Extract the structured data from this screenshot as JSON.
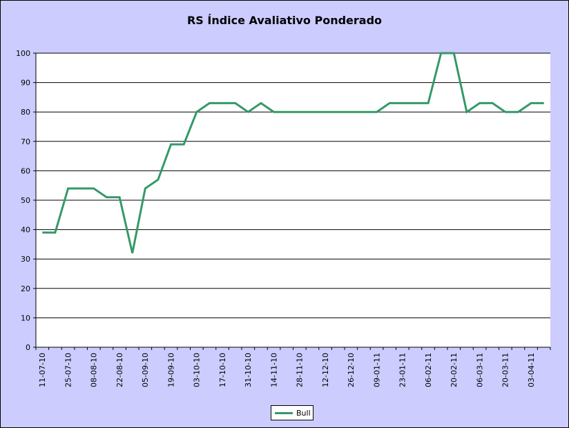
{
  "chart_data": {
    "type": "line",
    "title": "RS Índice Avaliativo Ponderado",
    "xlabel": "",
    "ylabel": "",
    "ylim": [
      0,
      100
    ],
    "yticks": [
      0,
      10,
      20,
      30,
      40,
      50,
      60,
      70,
      80,
      90,
      100
    ],
    "xtick_labels": [
      "11-07-10",
      "25-07-10",
      "08-08-10",
      "22-08-10",
      "05-09-10",
      "19-09-10",
      "03-10-10",
      "17-10-10",
      "31-10-10",
      "14-11-10",
      "28-11-10",
      "12-12-10",
      "26-12-10",
      "09-01-11",
      "23-01-11",
      "06-02-11",
      "20-02-11",
      "06-03-11",
      "20-03-11",
      "03-04-11"
    ],
    "x": [
      "11-07-10",
      "18-07-10",
      "25-07-10",
      "01-08-10",
      "08-08-10",
      "15-08-10",
      "22-08-10",
      "29-08-10",
      "05-09-10",
      "12-09-10",
      "19-09-10",
      "26-09-10",
      "03-10-10",
      "10-10-10",
      "17-10-10",
      "24-10-10",
      "31-10-10",
      "07-11-10",
      "14-11-10",
      "21-11-10",
      "28-11-10",
      "05-12-10",
      "12-12-10",
      "19-12-10",
      "26-12-10",
      "02-01-11",
      "09-01-11",
      "16-01-11",
      "23-01-11",
      "30-01-11",
      "06-02-11",
      "13-02-11",
      "20-02-11",
      "27-02-11",
      "06-03-11",
      "13-03-11",
      "20-03-11",
      "27-03-11",
      "03-04-11",
      "10-04-11"
    ],
    "series": [
      {
        "name": "Bull",
        "color": "#339966",
        "values": [
          39,
          39,
          54,
          54,
          54,
          51,
          51,
          32,
          54,
          57,
          69,
          69,
          80,
          83,
          83,
          83,
          80,
          83,
          80,
          80,
          80,
          80,
          80,
          80,
          80,
          80,
          80,
          83,
          83,
          83,
          83,
          100,
          100,
          80,
          83,
          83,
          80,
          80,
          83,
          83
        ]
      }
    ],
    "grid": true,
    "legend_position": "bottom",
    "plot_background": "#ffffff",
    "chart_background": "#ccccff"
  }
}
